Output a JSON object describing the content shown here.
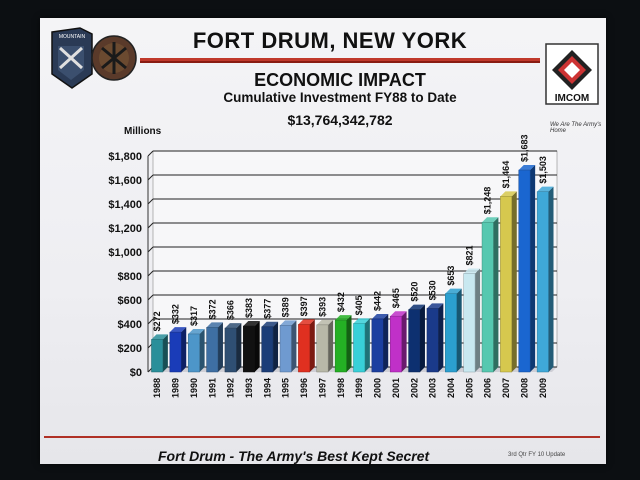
{
  "header": {
    "title": "FORT DRUM, NEW YORK",
    "subtitle": "ECONOMIC IMPACT",
    "sub_subtitle": "Cumulative Investment FY88 to Date",
    "total": "$13,764,342,782",
    "logo_left_text": "MOUNTAIN",
    "logo_right_text": "IMCOM",
    "logo_right_tagline": "We Are The Army's Home"
  },
  "footer": {
    "text": "Fort Drum - The Army's Best Kept Secret",
    "update_note": "3rd Qtr FY 10 Update"
  },
  "colors": {
    "bars": [
      "#2a8f9a",
      "#1a3cb8",
      "#4d96c9",
      "#3e6fa3",
      "#2f4f73",
      "#111111",
      "#1b3d78",
      "#6f9ad0",
      "#e03020",
      "#b8b8a8",
      "#24b024",
      "#38d0d8",
      "#1c3fa0",
      "#c030c8",
      "#0d3070",
      "#1a3a8a",
      "#2b9fcf",
      "#c8e8f0",
      "#56c8b0",
      "#d6c84e",
      "#1a66d0",
      "#3fa8d8"
    ]
  },
  "chart_data": {
    "type": "bar",
    "ylabel": "Millions",
    "categories": [
      "1988",
      "1989",
      "1990",
      "1991",
      "1992",
      "1993",
      "1994",
      "1995",
      "1996",
      "1997",
      "1998",
      "1999",
      "2000",
      "2001",
      "2002",
      "2003",
      "2004",
      "2005",
      "2006",
      "2007",
      "2008",
      "2009"
    ],
    "values": [
      272,
      332,
      317,
      372,
      366,
      383,
      377,
      389,
      397,
      393,
      432,
      405,
      442,
      465,
      520,
      530,
      653,
      821,
      1248,
      1464,
      1683,
      1503
    ],
    "data_labels": [
      "$272",
      "$332",
      "$317",
      "$372",
      "$366",
      "$383",
      "$377",
      "$389",
      "$397",
      "$393",
      "$432",
      "$405",
      "$442",
      "$465",
      "$520",
      "$530",
      "$653",
      "$821",
      "$1,248",
      "$1,464",
      "$1,683",
      "$1,503"
    ],
    "ylim": [
      0,
      1800
    ],
    "yticks": [
      0,
      200,
      400,
      600,
      800,
      1000,
      1200,
      1400,
      1600,
      1800
    ],
    "ytick_labels": [
      "$0",
      "$200",
      "$400",
      "$600",
      "$800",
      "$1,000",
      "$1,200",
      "$1,400",
      "$1,600",
      "$1,800"
    ],
    "grid": true
  }
}
